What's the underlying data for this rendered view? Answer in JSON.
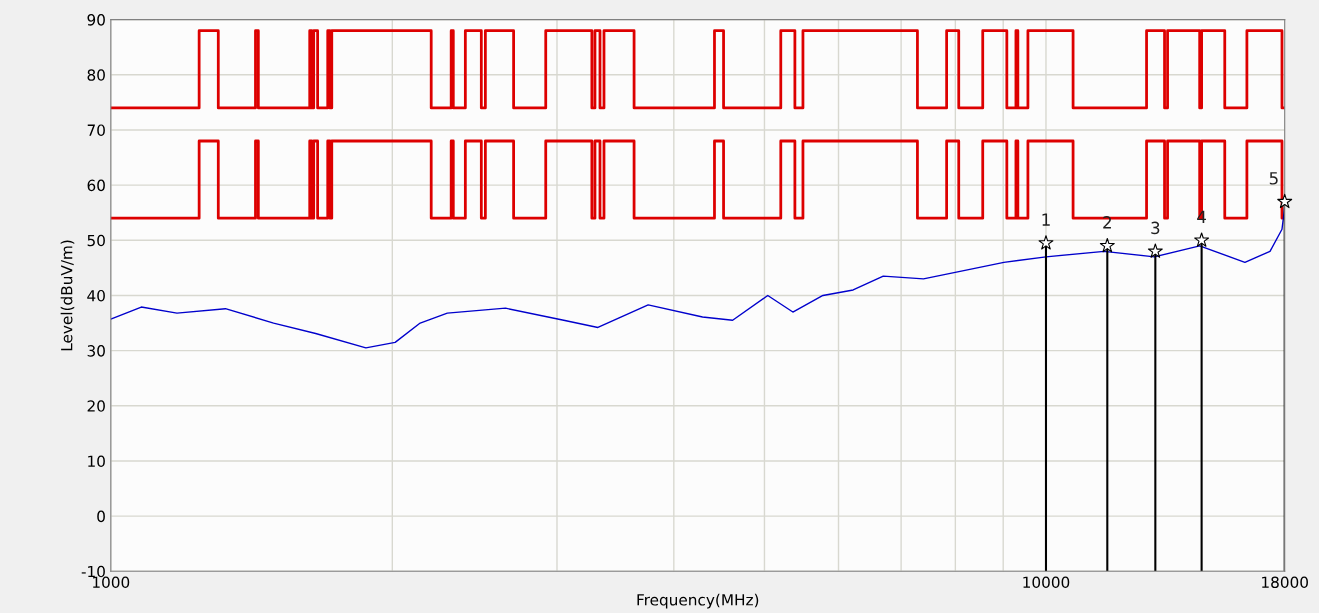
{
  "chart_data": {
    "type": "line",
    "xlabel": "Frequency(MHz)",
    "ylabel": "Level(dBuV/m)",
    "log": "x",
    "xlim": [
      1000,
      18000
    ],
    "xticks": [
      1000,
      {
        "value": 2000,
        "label": null
      },
      {
        "value": 3000,
        "label": null
      },
      {
        "value": 4000,
        "label": null
      },
      {
        "value": 5000,
        "label": null
      },
      {
        "value": 6000,
        "label": null
      },
      {
        "value": 7000,
        "label": null
      },
      {
        "value": 8000,
        "label": null
      },
      {
        "value": 9000,
        "label": null
      },
      10000,
      18000
    ],
    "ylim": [
      -10,
      90
    ],
    "yticks": [
      -10,
      0,
      10,
      20,
      30,
      40,
      50,
      60,
      70,
      80,
      90
    ],
    "grid": true,
    "annotations": [
      {
        "text": "1",
        "x": 10000,
        "y": 49.5
      },
      {
        "text": "2",
        "x": 11630,
        "y": 49
      },
      {
        "text": "3",
        "x": 13090,
        "y": 48
      },
      {
        "text": "4",
        "x": 14670,
        "y": 50
      },
      {
        "text": "5",
        "x": 18000,
        "y": 57
      }
    ],
    "series": [
      {
        "type": "step",
        "color": "#dd0000",
        "x": [
          1000,
          1243,
          1303,
          1428,
          1438,
          1632,
          1640,
          1648,
          1664,
          1706,
          1715,
          1723,
          2201,
          2312,
          2324,
          2394,
          2490,
          2515,
          2696,
          2918,
          3269,
          3294,
          3335,
          3368,
          3627,
          4421,
          4521,
          5205,
          5389,
          5497,
          7287,
          7830,
          8067,
          8558,
          9081,
          9287,
          9331,
          9565,
          10690,
          12810,
          13390,
          13490,
          14600,
          14670,
          15530,
          16400,
          17880,
          18000
        ],
        "values": [
          74,
          88,
          74,
          88,
          74,
          88,
          74,
          88,
          74,
          88,
          74,
          88,
          74,
          88,
          74,
          88,
          74,
          88,
          74,
          88,
          74,
          88,
          74,
          88,
          74,
          88,
          74,
          88,
          74,
          88,
          74,
          88,
          74,
          88,
          74,
          88,
          74,
          88,
          74,
          88,
          74,
          88,
          74,
          88,
          74,
          88,
          74,
          74
        ]
      },
      {
        "type": "step",
        "color": "#dd0000",
        "x": [
          1000,
          1243,
          1303,
          1428,
          1438,
          1632,
          1640,
          1648,
          1664,
          1706,
          1715,
          1723,
          2201,
          2312,
          2324,
          2394,
          2490,
          2515,
          2696,
          2918,
          3269,
          3294,
          3335,
          3368,
          3627,
          4421,
          4521,
          5205,
          5389,
          5497,
          7287,
          7830,
          8067,
          8558,
          9081,
          9287,
          9331,
          9565,
          10690,
          12810,
          13390,
          13490,
          14600,
          14670,
          15530,
          16400,
          17880,
          18000
        ],
        "values": [
          54,
          68,
          54,
          68,
          54,
          68,
          54,
          68,
          54,
          68,
          54,
          68,
          54,
          68,
          54,
          68,
          54,
          68,
          54,
          68,
          54,
          68,
          54,
          68,
          54,
          68,
          54,
          68,
          54,
          68,
          54,
          68,
          54,
          68,
          54,
          68,
          54,
          68,
          54,
          68,
          54,
          68,
          54,
          68,
          54,
          68,
          54,
          54
        ]
      },
      {
        "color": "#0000cc",
        "x": [
          1000,
          1078,
          1177,
          1326,
          1493,
          1656,
          1874,
          2014,
          2142,
          2290,
          2643,
          3050,
          3318,
          3755,
          4293,
          4623,
          5041,
          5362,
          5774,
          6220,
          6699,
          7396,
          8167,
          9015,
          10000,
          11540,
          13060,
          14600,
          16320,
          17360,
          17880,
          18000
        ],
        "values": [
          35.7,
          37.9,
          36.8,
          37.6,
          35.0,
          33.1,
          30.5,
          31.5,
          35.0,
          36.8,
          37.7,
          35.5,
          34.2,
          38.3,
          36.1,
          35.5,
          40,
          37,
          40,
          41,
          43.5,
          43,
          44.5,
          46,
          47,
          48,
          47,
          49,
          46,
          48,
          52,
          56
        ]
      },
      {
        "type": "lollipop",
        "color": "#000000",
        "marker": "star",
        "x": [
          10000,
          11630,
          13090,
          14670,
          18000
        ],
        "values": [
          49.5,
          49,
          48,
          50,
          57
        ]
      }
    ]
  }
}
